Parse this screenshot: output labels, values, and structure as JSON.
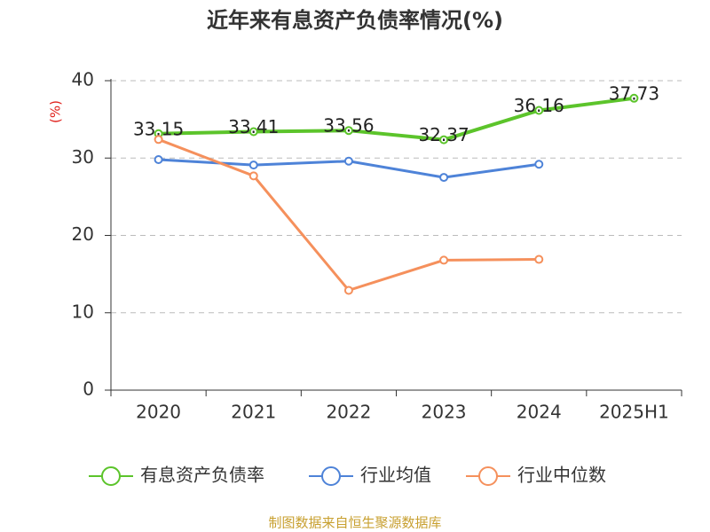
{
  "chart_data": {
    "type": "line",
    "title": "近年来有息资产负债率情况(%)",
    "y_label": "(%)",
    "categories": [
      "2020",
      "2021",
      "2022",
      "2023",
      "2024",
      "2025H1"
    ],
    "series": [
      {
        "name": "有息资产负债率",
        "color": "#5cc42b",
        "values": [
          33.15,
          33.41,
          33.56,
          32.37,
          36.16,
          37.73
        ],
        "show_labels": true
      },
      {
        "name": "行业均值",
        "color": "#4e83d8",
        "values": [
          29.8,
          29.1,
          29.6,
          27.5,
          29.2,
          null
        ]
      },
      {
        "name": "行业中位数",
        "color": "#f5905c",
        "values": [
          32.4,
          27.7,
          12.9,
          16.8,
          16.9,
          null
        ]
      }
    ],
    "ylim": [
      0,
      40
    ],
    "yticks": [
      0,
      10,
      20,
      30,
      40
    ],
    "grid": true,
    "source": "制图数据来自恒生聚源数据库"
  }
}
